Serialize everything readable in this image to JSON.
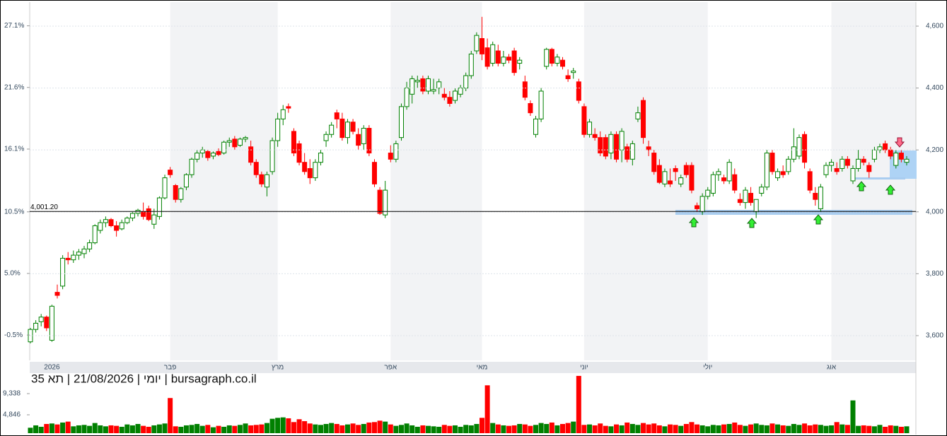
{
  "chart_data": {
    "type": "candlestick",
    "footer": "יומי | 21/08/2026 | תא 35 | bursagraph.co.il",
    "categories": [
      null,
      null,
      null,
      null,
      "2026",
      null,
      null,
      null,
      null,
      null,
      null,
      null,
      null,
      null,
      null,
      null,
      null,
      null,
      null,
      null,
      null,
      null,
      null,
      null,
      null,
      null,
      "פבר",
      null,
      null,
      null,
      null,
      null,
      null,
      null,
      null,
      null,
      null,
      null,
      null,
      null,
      null,
      null,
      null,
      null,
      null,
      null,
      "מרץ",
      null,
      null,
      null,
      null,
      null,
      null,
      null,
      null,
      null,
      null,
      null,
      null,
      null,
      null,
      null,
      null,
      null,
      null,
      null,
      null,
      "אפר",
      null,
      null,
      null,
      null,
      null,
      null,
      null,
      null,
      null,
      null,
      null,
      null,
      null,
      null,
      null,
      null,
      "מאי",
      null,
      null,
      null,
      null,
      null,
      null,
      null,
      null,
      null,
      null,
      null,
      null,
      null,
      null,
      null,
      null,
      null,
      null,
      "יוני",
      null,
      null,
      null,
      null,
      null,
      null,
      null,
      null,
      null,
      null,
      null,
      null,
      null,
      null,
      null,
      null,
      null,
      null,
      null,
      null,
      null,
      null,
      "יולי",
      null,
      null,
      null,
      null,
      null,
      null,
      null,
      null,
      null,
      null,
      null,
      null,
      null,
      null,
      null,
      null,
      null,
      null,
      null,
      null,
      null,
      null,
      "אוג",
      null,
      null,
      null,
      null,
      null,
      null,
      null,
      null,
      null,
      null,
      null,
      null,
      null,
      null
    ],
    "candles": [
      [
        3580,
        3625,
        3575,
        3620
      ],
      [
        3620,
        3650,
        3610,
        3640
      ],
      [
        3645,
        3670,
        3630,
        3660
      ],
      [
        3660,
        3665,
        3615,
        3625
      ],
      [
        3585,
        3700,
        3580,
        3695
      ],
      [
        3740,
        3765,
        3720,
        3730
      ],
      [
        3760,
        3860,
        3750,
        3850
      ],
      [
        3850,
        3870,
        3830,
        3845
      ],
      [
        3845,
        3875,
        3835,
        3860
      ],
      [
        3860,
        3880,
        3845,
        3870
      ],
      [
        3865,
        3890,
        3850,
        3880
      ],
      [
        3880,
        3910,
        3870,
        3900
      ],
      [
        3900,
        3960,
        3895,
        3955
      ],
      [
        3940,
        3975,
        3930,
        3965
      ],
      [
        3965,
        3985,
        3950,
        3975
      ],
      [
        3975,
        3980,
        3950,
        3955
      ],
      [
        3955,
        3970,
        3920,
        3940
      ],
      [
        3945,
        3975,
        3940,
        3965
      ],
      [
        3965,
        3985,
        3960,
        3980
      ],
      [
        3980,
        4000,
        3970,
        3995
      ],
      [
        3995,
        4010,
        3985,
        4005
      ],
      [
        4000,
        4030,
        3975,
        3985
      ],
      [
        4010,
        4020,
        3970,
        3975
      ],
      [
        3960,
        4010,
        3945,
        3990
      ],
      [
        3985,
        4050,
        3975,
        4045
      ],
      [
        4045,
        4120,
        4040,
        4110
      ],
      [
        4135,
        4145,
        4110,
        4120
      ],
      [
        4085,
        4090,
        4030,
        4040
      ],
      [
        4040,
        4080,
        4030,
        4075
      ],
      [
        4080,
        4125,
        4070,
        4120
      ],
      [
        4120,
        4175,
        4110,
        4170
      ],
      [
        4170,
        4200,
        4160,
        4190
      ],
      [
        4190,
        4210,
        4175,
        4200
      ],
      [
        4195,
        4200,
        4165,
        4175
      ],
      [
        4180,
        4195,
        4170,
        4190
      ],
      [
        4195,
        4205,
        4180,
        4185
      ],
      [
        4190,
        4230,
        4185,
        4225
      ],
      [
        4225,
        4240,
        4210,
        4230
      ],
      [
        4235,
        4245,
        4200,
        4210
      ],
      [
        4215,
        4240,
        4210,
        4235
      ],
      [
        4235,
        4245,
        4225,
        4240
      ],
      [
        4210,
        4230,
        4150,
        4160
      ],
      [
        4160,
        4170,
        4110,
        4120
      ],
      [
        4120,
        4130,
        4080,
        4090
      ],
      [
        4080,
        4130,
        4050,
        4120
      ],
      [
        4130,
        4240,
        4120,
        4230
      ],
      [
        4230,
        4320,
        4210,
        4300
      ],
      [
        4300,
        4345,
        4280,
        4330
      ],
      [
        4340,
        4350,
        4320,
        4335
      ],
      [
        4260,
        4270,
        4180,
        4190
      ],
      [
        4220,
        4230,
        4150,
        4160
      ],
      [
        4160,
        4190,
        4120,
        4130
      ],
      [
        4140,
        4170,
        4090,
        4110
      ],
      [
        4110,
        4170,
        4100,
        4160
      ],
      [
        4160,
        4200,
        4150,
        4190
      ],
      [
        4230,
        4260,
        4210,
        4250
      ],
      [
        4250,
        4290,
        4240,
        4280
      ],
      [
        4320,
        4330,
        4270,
        4300
      ],
      [
        4300,
        4320,
        4230,
        4240
      ],
      [
        4240,
        4300,
        4220,
        4290
      ],
      [
        4290,
        4300,
        4250,
        4260
      ],
      [
        4250,
        4270,
        4200,
        4215
      ],
      [
        4220,
        4280,
        4200,
        4270
      ],
      [
        4270,
        4280,
        4180,
        4190
      ],
      [
        4160,
        4170,
        4080,
        4090
      ],
      [
        4070,
        4080,
        3990,
        3995
      ],
      [
        3990,
        4100,
        3980,
        4070
      ],
      [
        4190,
        4215,
        4160,
        4170
      ],
      [
        4170,
        4230,
        4160,
        4220
      ],
      [
        4240,
        4350,
        4230,
        4340
      ],
      [
        4340,
        4420,
        4330,
        4400
      ],
      [
        4380,
        4440,
        4350,
        4430
      ],
      [
        4420,
        4440,
        4400,
        4425
      ],
      [
        4430,
        4440,
        4380,
        4390
      ],
      [
        4390,
        4440,
        4380,
        4430
      ],
      [
        4390,
        4430,
        4380,
        4395
      ],
      [
        4400,
        4430,
        4380,
        4420
      ],
      [
        4380,
        4400,
        4360,
        4370
      ],
      [
        4370,
        4390,
        4340,
        4350
      ],
      [
        4360,
        4400,
        4350,
        4390
      ],
      [
        4380,
        4410,
        4370,
        4400
      ],
      [
        4400,
        4450,
        4390,
        4440
      ],
      [
        4440,
        4520,
        4430,
        4510
      ],
      [
        4520,
        4580,
        4510,
        4570
      ],
      [
        4560,
        4630,
        4490,
        4510
      ],
      [
        4530,
        4560,
        4460,
        4470
      ],
      [
        4480,
        4550,
        4470,
        4540
      ],
      [
        4520,
        4540,
        4470,
        4480
      ],
      [
        4480,
        4520,
        4470,
        4500
      ],
      [
        4500,
        4510,
        4480,
        4490
      ],
      [
        4520,
        4530,
        4440,
        4450
      ],
      [
        4480,
        4500,
        4460,
        4490
      ],
      [
        4420,
        4440,
        4360,
        4370
      ],
      [
        4350,
        4360,
        4310,
        4320
      ],
      [
        4250,
        4310,
        4240,
        4300
      ],
      [
        4300,
        4400,
        4290,
        4390
      ],
      [
        4470,
        4530,
        4460,
        4525
      ],
      [
        4525,
        4530,
        4470,
        4480
      ],
      [
        4480,
        4510,
        4470,
        4500
      ],
      [
        4490,
        4500,
        4460,
        4470
      ],
      [
        4440,
        4460,
        4420,
        4430
      ],
      [
        4450,
        4465,
        4430,
        4455
      ],
      [
        4420,
        4430,
        4350,
        4360
      ],
      [
        4340,
        4350,
        4240,
        4250
      ],
      [
        4250,
        4300,
        4240,
        4290
      ],
      [
        4250,
        4270,
        4230,
        4240
      ],
      [
        4240,
        4260,
        4180,
        4190
      ],
      [
        4240,
        4250,
        4170,
        4180
      ],
      [
        4190,
        4260,
        4170,
        4250
      ],
      [
        4250,
        4260,
        4160,
        4170
      ],
      [
        4200,
        4270,
        4160,
        4260
      ],
      [
        4210,
        4220,
        4160,
        4170
      ],
      [
        4170,
        4230,
        4150,
        4220
      ],
      [
        4300,
        4340,
        4290,
        4320
      ],
      [
        4360,
        4370,
        4220,
        4240
      ],
      [
        4210,
        4230,
        4180,
        4200
      ],
      [
        4190,
        4200,
        4120,
        4130
      ],
      [
        4150,
        4170,
        4090,
        4095
      ],
      [
        4090,
        4140,
        4080,
        4130
      ],
      [
        4100,
        4140,
        4080,
        4090
      ],
      [
        4140,
        4150,
        4100,
        4130
      ],
      [
        4090,
        4120,
        4080,
        4110
      ],
      [
        4150,
        4160,
        4110,
        4120
      ],
      [
        4150,
        4160,
        4060,
        4070
      ],
      [
        4020,
        4030,
        4000,
        4010
      ],
      [
        4000,
        4060,
        3990,
        4050
      ],
      [
        4050,
        4080,
        4040,
        4070
      ],
      [
        4060,
        4130,
        4050,
        4120
      ],
      [
        4120,
        4140,
        4100,
        4130
      ],
      [
        4110,
        4120,
        4090,
        4100
      ],
      [
        4100,
        4170,
        4090,
        4160
      ],
      [
        4120,
        4140,
        4060,
        4070
      ],
      [
        4040,
        4060,
        4020,
        4030
      ],
      [
        4030,
        4080,
        4010,
        4070
      ],
      [
        4060,
        4080,
        4020,
        4030
      ],
      [
        4000,
        4040,
        3980,
        4040
      ],
      [
        4060,
        4090,
        4050,
        4080
      ],
      [
        4080,
        4200,
        4070,
        4190
      ],
      [
        4190,
        4200,
        4120,
        4130
      ],
      [
        4110,
        4140,
        4100,
        4130
      ],
      [
        4130,
        4150,
        4110,
        4120
      ],
      [
        4130,
        4180,
        4120,
        4170
      ],
      [
        4170,
        4270,
        4160,
        4210
      ],
      [
        4180,
        4250,
        4170,
        4240
      ],
      [
        4250,
        4260,
        4140,
        4160
      ],
      [
        4130,
        4140,
        4060,
        4070
      ],
      [
        4060,
        4080,
        4020,
        4040
      ],
      [
        4010,
        4090,
        4000,
        4080
      ],
      [
        4120,
        4160,
        4110,
        4150
      ],
      [
        4150,
        4170,
        4130,
        4160
      ],
      [
        4140,
        4160,
        4120,
        4130
      ],
      [
        4140,
        4180,
        4130,
        4170
      ],
      [
        4170,
        4180,
        4140,
        4150
      ],
      [
        4100,
        4150,
        4090,
        4140
      ],
      [
        4140,
        4200,
        4130,
        4170
      ],
      [
        4170,
        4180,
        4150,
        4160
      ],
      [
        4150,
        4160,
        4110,
        4130
      ],
      [
        4170,
        4210,
        4160,
        4200
      ],
      [
        4200,
        4220,
        4190,
        4210
      ],
      [
        4220,
        4230,
        4190,
        4200
      ],
      [
        4200,
        4210,
        4170,
        4180
      ],
      [
        4150,
        4200,
        4140,
        4190
      ],
      [
        4190,
        4200,
        4160,
        4170
      ],
      [
        4160,
        4180,
        4150,
        4170
      ]
    ],
    "up_color": "#008000",
    "down_color": "#ff0000",
    "ylim": [
      3520,
      4673
    ],
    "yticks": [
      {
        "value": 3600,
        "label": "3,600"
      },
      {
        "value": 3800,
        "label": "3,800"
      },
      {
        "value": 4000,
        "label": "4,000"
      },
      {
        "value": 4200,
        "label": "4,200"
      },
      {
        "value": 4400,
        "label": "4,400"
      },
      {
        "value": 4600,
        "label": "4,600"
      }
    ],
    "y2lim": [
      -2.76,
      29.09
    ],
    "y2ticks": [
      {
        "value": -0.5,
        "label": "-0.5%"
      },
      {
        "value": 5.0,
        "label": "5.0%"
      },
      {
        "value": 10.5,
        "label": "10.5%"
      },
      {
        "value": 16.1,
        "label": "16.1%"
      },
      {
        "value": 21.6,
        "label": "21.6%"
      },
      {
        "value": 27.1,
        "label": "27.1%"
      }
    ],
    "reference_line": {
      "value": 4001.2,
      "label": "4,001.20"
    },
    "volume": {
      "values": [
        2100,
        2600,
        2300,
        2900,
        3000,
        2800,
        3200,
        3400,
        2400,
        2600,
        2700,
        2500,
        3100,
        2600,
        2400,
        2600,
        2500,
        2300,
        2800,
        2600,
        2900,
        2500,
        2300,
        2600,
        2800,
        3000,
        8400,
        2400,
        2300,
        2600,
        2700,
        2900,
        2500,
        2700,
        2200,
        2500,
        2300,
        2600,
        2500,
        2700,
        3000,
        2600,
        2700,
        2800,
        3100,
        4000,
        4200,
        4300,
        4100,
        3300,
        3900,
        3500,
        3000,
        2800,
        2700,
        2900,
        3100,
        2900,
        2600,
        2800,
        3000,
        2700,
        2900,
        3200,
        3300,
        3600,
        3400,
        2800,
        2500,
        2700,
        3000,
        2600,
        2300,
        2600,
        2500,
        2400,
        2300,
        2700,
        2500,
        2600,
        2300,
        2700,
        2600,
        2900,
        4200,
        11100,
        3100,
        2800,
        2600,
        2500,
        2600,
        2900,
        2800,
        2500,
        2700,
        3100,
        2900,
        3200,
        2600,
        2900,
        3100,
        3400,
        13100,
        2700,
        2800,
        2600,
        3000,
        2500,
        2400,
        2800,
        2600,
        3200,
        2900,
        2700,
        3100,
        2800,
        3000,
        2600,
        2400,
        2800,
        2700,
        2500,
        2900,
        3300,
        2800,
        2600,
        2400,
        2700,
        2600,
        2800,
        2900,
        3200,
        2700,
        2500,
        2800,
        3000,
        2700,
        2600,
        3000,
        2800,
        2600,
        2500,
        2900,
        2700,
        3000,
        2600,
        2800,
        2700,
        2500,
        2600,
        3300,
        2800,
        2700,
        7900,
        2500,
        2600,
        2500,
        2400,
        2700,
        2300,
        2600,
        2500,
        2300,
        2400
      ],
      "ylim": [
        946,
        13390
      ],
      "yticks": [
        {
          "value": 4846,
          "label": "4,846"
        },
        {
          "value": 9338,
          "label": "9,338"
        }
      ]
    }
  }
}
